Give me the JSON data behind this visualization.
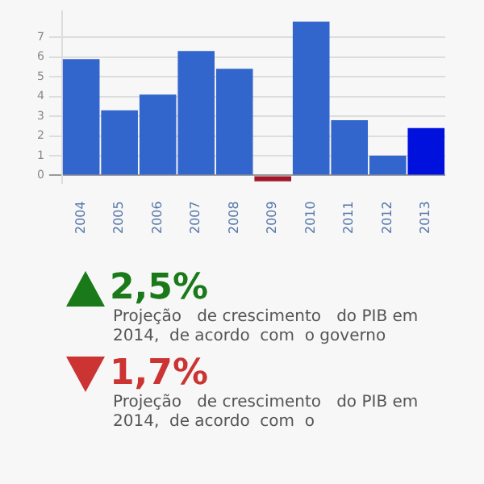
{
  "chart_data": {
    "type": "bar",
    "categories": [
      "2004",
      "2005",
      "2006",
      "2007",
      "2008",
      "2009",
      "2010",
      "2011",
      "2012",
      "2013"
    ],
    "values": [
      5.9,
      3.3,
      4.1,
      6.3,
      5.4,
      -0.3,
      7.8,
      2.8,
      1.0,
      2.4
    ],
    "colors": [
      "#3366cc",
      "#3366cc",
      "#3366cc",
      "#3366cc",
      "#3366cc",
      "#a0172a",
      "#3366cc",
      "#3366cc",
      "#3366cc",
      "#0011dd"
    ],
    "ylim": [
      -0.4,
      8.3
    ],
    "yticks": [
      0,
      1,
      2,
      3,
      4,
      5,
      6,
      7
    ],
    "grid": "y",
    "annotations": [
      "2,5%",
      "Projeção   de crescimento   do PIB em  2014,  de acordo  com  o governo",
      "1,7%",
      "Projeção   de crescimento   do PIB em  2014,  de acordo  com  o"
    ]
  }
}
